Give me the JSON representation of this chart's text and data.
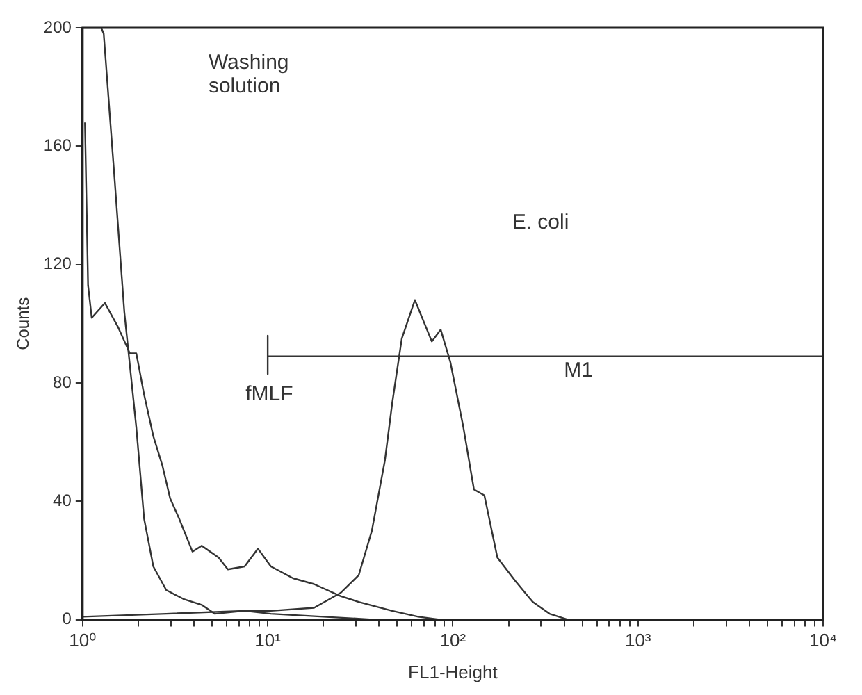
{
  "chart_data": {
    "type": "line",
    "xlabel": "FL1-Height",
    "ylabel": "Counts",
    "log": "x",
    "grid": false,
    "legend": false,
    "marker": "none",
    "line_style": "solid",
    "xlim": [
      1,
      10000
    ],
    "ylim": [
      0,
      200
    ],
    "xticks": [
      {
        "value": 1,
        "label": "10⁰"
      },
      {
        "value": 2,
        "label": null
      },
      {
        "value": 3,
        "label": null
      },
      {
        "value": 4,
        "label": null
      },
      {
        "value": 5,
        "label": null
      },
      {
        "value": 6,
        "label": null
      },
      {
        "value": 7,
        "label": null
      },
      {
        "value": 8,
        "label": null
      },
      {
        "value": 9,
        "label": null
      },
      {
        "value": 10,
        "label": "10¹"
      },
      {
        "value": 20,
        "label": null
      },
      {
        "value": 30,
        "label": null
      },
      {
        "value": 40,
        "label": null
      },
      {
        "value": 50,
        "label": null
      },
      {
        "value": 60,
        "label": null
      },
      {
        "value": 70,
        "label": null
      },
      {
        "value": 80,
        "label": null
      },
      {
        "value": 90,
        "label": null
      },
      {
        "value": 100,
        "label": "10²"
      },
      {
        "value": 200,
        "label": null
      },
      {
        "value": 300,
        "label": null
      },
      {
        "value": 400,
        "label": null
      },
      {
        "value": 500,
        "label": null
      },
      {
        "value": 600,
        "label": null
      },
      {
        "value": 700,
        "label": null
      },
      {
        "value": 800,
        "label": null
      },
      {
        "value": 900,
        "label": null
      },
      {
        "value": 1000,
        "label": "10³"
      },
      {
        "value": 2000,
        "label": null
      },
      {
        "value": 3000,
        "label": null
      },
      {
        "value": 4000,
        "label": null
      },
      {
        "value": 5000,
        "label": null
      },
      {
        "value": 6000,
        "label": null
      },
      {
        "value": 7000,
        "label": null
      },
      {
        "value": 8000,
        "label": null
      },
      {
        "value": 9000,
        "label": null
      },
      {
        "value": 10000,
        "label": "10⁴"
      }
    ],
    "yticks": [
      0,
      40,
      80,
      120,
      160,
      200
    ],
    "series": [
      {
        "color": "#333333",
        "x": [
          1,
          1.07,
          1.26,
          1.3,
          1.48,
          1.68,
          1.95,
          2.15,
          2.41,
          2.83,
          3.5,
          4.4,
          5.17,
          7.5,
          10.4,
          20,
          38,
          10000
        ],
        "values": [
          200,
          200,
          200,
          198,
          151,
          104,
          65,
          34,
          18,
          10,
          7,
          5,
          2,
          3,
          2,
          1,
          0,
          0
        ]
      },
      {
        "color": "#333333",
        "x": [
          1.03,
          1.07,
          1.12,
          1.32,
          1.55,
          1.8,
          1.95,
          2.15,
          2.41,
          2.7,
          2.97,
          3.33,
          3.92,
          4.4,
          5.43,
          6.09,
          7.5,
          8.85,
          10.4,
          13.7,
          17.8,
          24.7,
          31,
          47,
          65,
          86,
          10000
        ],
        "values": [
          168,
          113,
          102,
          107,
          99,
          90,
          90,
          76,
          62,
          52,
          41,
          34,
          23,
          25,
          21,
          17,
          18,
          24,
          18,
          14,
          12,
          8,
          6,
          3,
          1,
          0,
          0
        ]
      },
      {
        "color": "#333333",
        "x": [
          1,
          2.83,
          7.5,
          10.4,
          17.8,
          24.7,
          31,
          36.5,
          43,
          47,
          53,
          62.4,
          77,
          86,
          97,
          114,
          130,
          148,
          174,
          218,
          270,
          333,
          419,
          10000
        ],
        "values": [
          1,
          2,
          3,
          3,
          4,
          9,
          15,
          30,
          54,
          73,
          95,
          108,
          94,
          98,
          87,
          65,
          44,
          42,
          21,
          13,
          6,
          2,
          0,
          0
        ]
      },
      {
        "color": "#333333",
        "x": [
          10,
          10,
          10,
          10000
        ],
        "values": [
          96,
          83,
          89,
          89
        ]
      }
    ],
    "annotations": [
      "Washing solution",
      "fMLF",
      "E. coli",
      "M1"
    ]
  }
}
